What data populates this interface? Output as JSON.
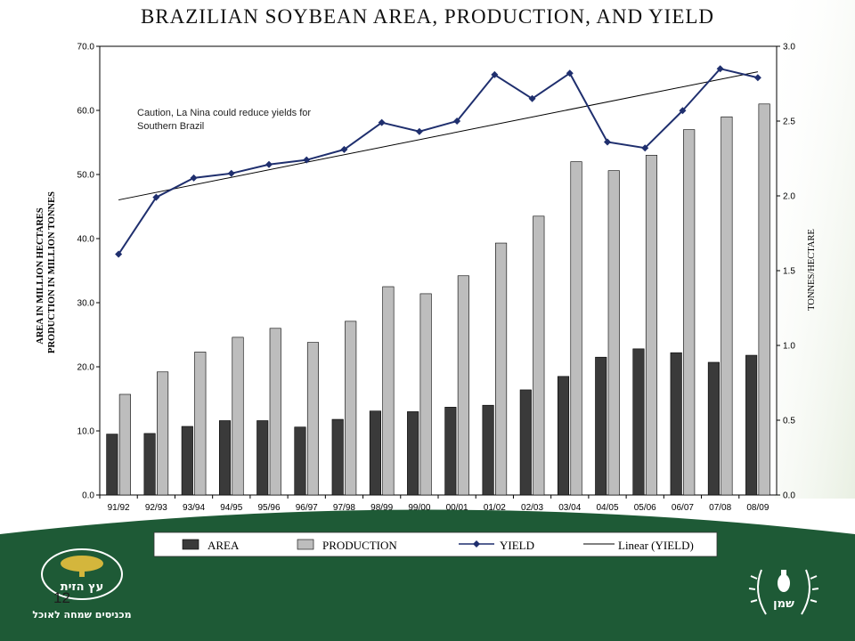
{
  "slide": {
    "title": "BRAZILIAN SOYBEAN AREA, PRODUCTION, AND YIELD",
    "page_number": "12",
    "footer_color": "#1e5a36",
    "left_logo": {
      "name": "עץ הזית",
      "tagline": "מכניסים שמחה לאוכל"
    },
    "right_logo": {
      "name": "שמן"
    }
  },
  "chart_data": {
    "type": "bar",
    "categories": [
      "91/92",
      "92/93",
      "93/94",
      "94/95",
      "95/96",
      "96/97",
      "97/98",
      "98/99",
      "99/00",
      "00/01",
      "01/02",
      "02/03",
      "03/04",
      "04/05",
      "05/06",
      "06/07",
      "07/08",
      "08/09"
    ],
    "series": [
      {
        "name": "AREA",
        "type": "bar",
        "axis": "left",
        "color": "#3a3a3a",
        "values": [
          9.5,
          9.6,
          10.7,
          11.6,
          11.6,
          10.6,
          11.8,
          13.1,
          13.0,
          13.7,
          14.0,
          16.4,
          18.5,
          21.5,
          22.8,
          22.2,
          20.7,
          21.8
        ]
      },
      {
        "name": "PRODUCTION",
        "type": "bar",
        "axis": "left",
        "color": "#bdbdbd",
        "values": [
          15.7,
          19.2,
          22.3,
          24.6,
          26.0,
          23.8,
          27.1,
          32.5,
          31.4,
          34.2,
          39.3,
          43.5,
          52.0,
          50.6,
          53.0,
          57.0,
          59.0,
          61.0
        ]
      },
      {
        "name": "YIELD",
        "type": "line",
        "axis": "right",
        "color": "#1f2f6e",
        "values": [
          1.61,
          1.99,
          2.12,
          2.15,
          2.21,
          2.24,
          2.31,
          2.49,
          2.43,
          2.5,
          2.81,
          2.65,
          2.82,
          2.36,
          2.32,
          2.57,
          2.85,
          2.79
        ]
      },
      {
        "name": "Linear (YIELD)",
        "type": "trendline",
        "axis": "right",
        "color": "#000000"
      }
    ],
    "left_axis": {
      "label_line1": "AREA IN MILLION HECTARES",
      "label_line2": "PRODUCTION IN MILLION TONNES",
      "ylim": [
        0,
        70
      ],
      "ticks": [
        "0.0",
        "10.0",
        "20.0",
        "30.0",
        "40.0",
        "50.0",
        "60.0",
        "70.0"
      ]
    },
    "right_axis": {
      "label": "TONNES/HECTARE",
      "ylim": [
        0,
        3
      ],
      "ticks": [
        "0.0",
        "0.5",
        "1.0",
        "1.5",
        "2.0",
        "2.5",
        "3.0"
      ]
    },
    "annotation": {
      "line1": "Caution, La Nina could reduce yields for",
      "line2": "Southern Brazil"
    },
    "legend": {
      "placement": "bottom",
      "items": [
        "AREA",
        "PRODUCTION",
        "YIELD",
        "Linear (YIELD)"
      ]
    },
    "grid": false
  }
}
